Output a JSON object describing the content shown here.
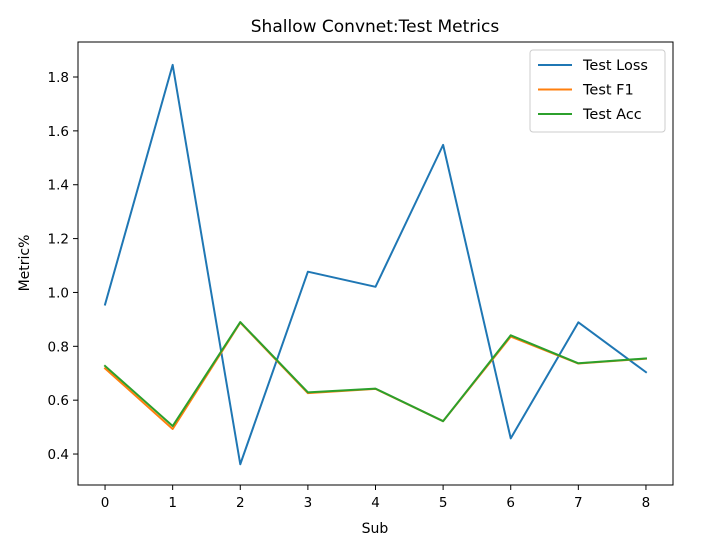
{
  "chart_data": {
    "type": "line",
    "title": "Shallow Convnet:Test Metrics",
    "xlabel": "Sub",
    "ylabel": "Metric%",
    "x": [
      0,
      1,
      2,
      3,
      4,
      5,
      6,
      7,
      8
    ],
    "xticks": [
      0,
      1,
      2,
      3,
      4,
      5,
      6,
      7,
      8
    ],
    "yticks": [
      0.4,
      0.6,
      0.8,
      1.0,
      1.2,
      1.4,
      1.6,
      1.8
    ],
    "ytick_labels": [
      "0.4",
      "0.6",
      "0.8",
      "1.0",
      "1.2",
      "1.4",
      "1.6",
      "1.8"
    ],
    "xlim": [
      -0.4,
      8.4
    ],
    "ylim": [
      0.285,
      1.93
    ],
    "grid": false,
    "legend_position": "top-right",
    "series": [
      {
        "name": "Test Loss",
        "color": "#1f77b4",
        "values": [
          0.955,
          1.845,
          0.362,
          1.077,
          1.021,
          1.548,
          0.458,
          0.889,
          0.704
        ]
      },
      {
        "name": "Test F1",
        "color": "#ff7f0e",
        "values": [
          0.718,
          0.493,
          0.888,
          0.626,
          0.642,
          0.522,
          0.836,
          0.736,
          0.754
        ]
      },
      {
        "name": "Test Acc",
        "color": "#2ca02c",
        "values": [
          0.727,
          0.504,
          0.89,
          0.629,
          0.643,
          0.522,
          0.841,
          0.737,
          0.755
        ]
      }
    ]
  }
}
